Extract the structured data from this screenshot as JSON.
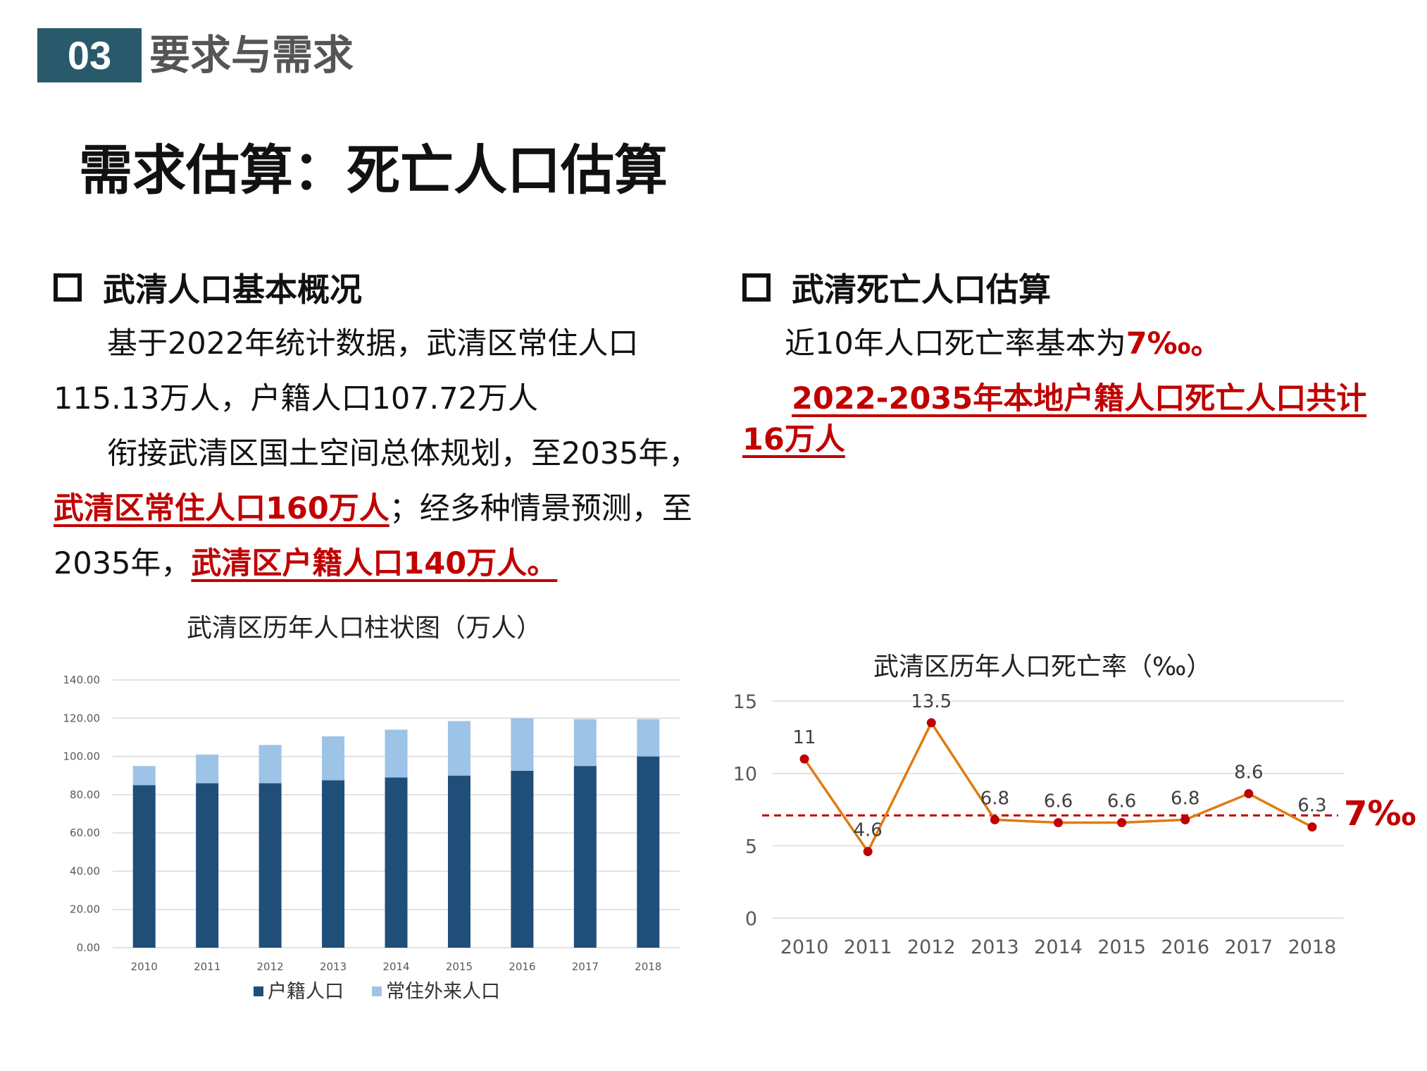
{
  "header": {
    "section_number": "03",
    "section_title": "要求与需求",
    "main_title": "需求估算：死亡人口估算"
  },
  "left": {
    "heading": "武清人口基本概况",
    "p1a": "基于2022年统计数据，武清区常住人口",
    "p1b": "115.13万人，户籍人口107.72万人",
    "p2a": "衔接武清区国土空间总体规划，至2035年，",
    "p2b_red": "武清区常住人口160万人",
    "p2b_rest": "；经多种情景预测，至",
    "p2c_start": "2035年，",
    "p2c_red": "武清区户籍人口140万人。"
  },
  "right": {
    "heading": "武清死亡人口估算",
    "p1_text": "近10年人口死亡率基本为",
    "p1_red": "7‰。",
    "p2_red": "2022-2035年本地户籍人口死亡人口共计16万人"
  },
  "colors": {
    "badge": "#295a6b",
    "bar_registered": "#1f4e79",
    "bar_migrant": "#9dc3e6",
    "line": "#e07b14",
    "marker": "#c00000",
    "ref_line": "#c00000"
  },
  "chart_data": [
    {
      "type": "bar",
      "stacked": true,
      "title": "武清区历年人口柱状图（万人）",
      "categories": [
        "2010",
        "2011",
        "2012",
        "2013",
        "2014",
        "2015",
        "2016",
        "2017",
        "2018"
      ],
      "series": [
        {
          "name": "户籍人口",
          "values": [
            85,
            86,
            86,
            87.5,
            89,
            90,
            92.5,
            95,
            100
          ]
        },
        {
          "name": "常住外来人口",
          "values": [
            10,
            15,
            20,
            23,
            25,
            28.5,
            27.5,
            24.5,
            19.5
          ]
        }
      ],
      "ylim": [
        0,
        140
      ],
      "yticks": [
        "0.00",
        "20.00",
        "40.00",
        "60.00",
        "80.00",
        "100.00",
        "120.00",
        "140.00"
      ],
      "grid": true,
      "legend": "bottom"
    },
    {
      "type": "line",
      "title": "武清区历年人口死亡率（‰）",
      "categories": [
        "2010",
        "2011",
        "2012",
        "2013",
        "2014",
        "2015",
        "2016",
        "2017",
        "2018"
      ],
      "values": [
        11,
        4.6,
        13.5,
        6.8,
        6.6,
        6.6,
        6.8,
        8.6,
        6.3
      ],
      "labels": [
        "11",
        "4.6",
        "13.5",
        "6.8",
        "6.6",
        "6.6",
        "6.8",
        "8.6",
        "6.3"
      ],
      "ylim": [
        0,
        15
      ],
      "yticks": [
        "0",
        "5",
        "10",
        "15"
      ],
      "reference": {
        "value": 7.1,
        "label": "7‰"
      },
      "grid": true
    }
  ]
}
